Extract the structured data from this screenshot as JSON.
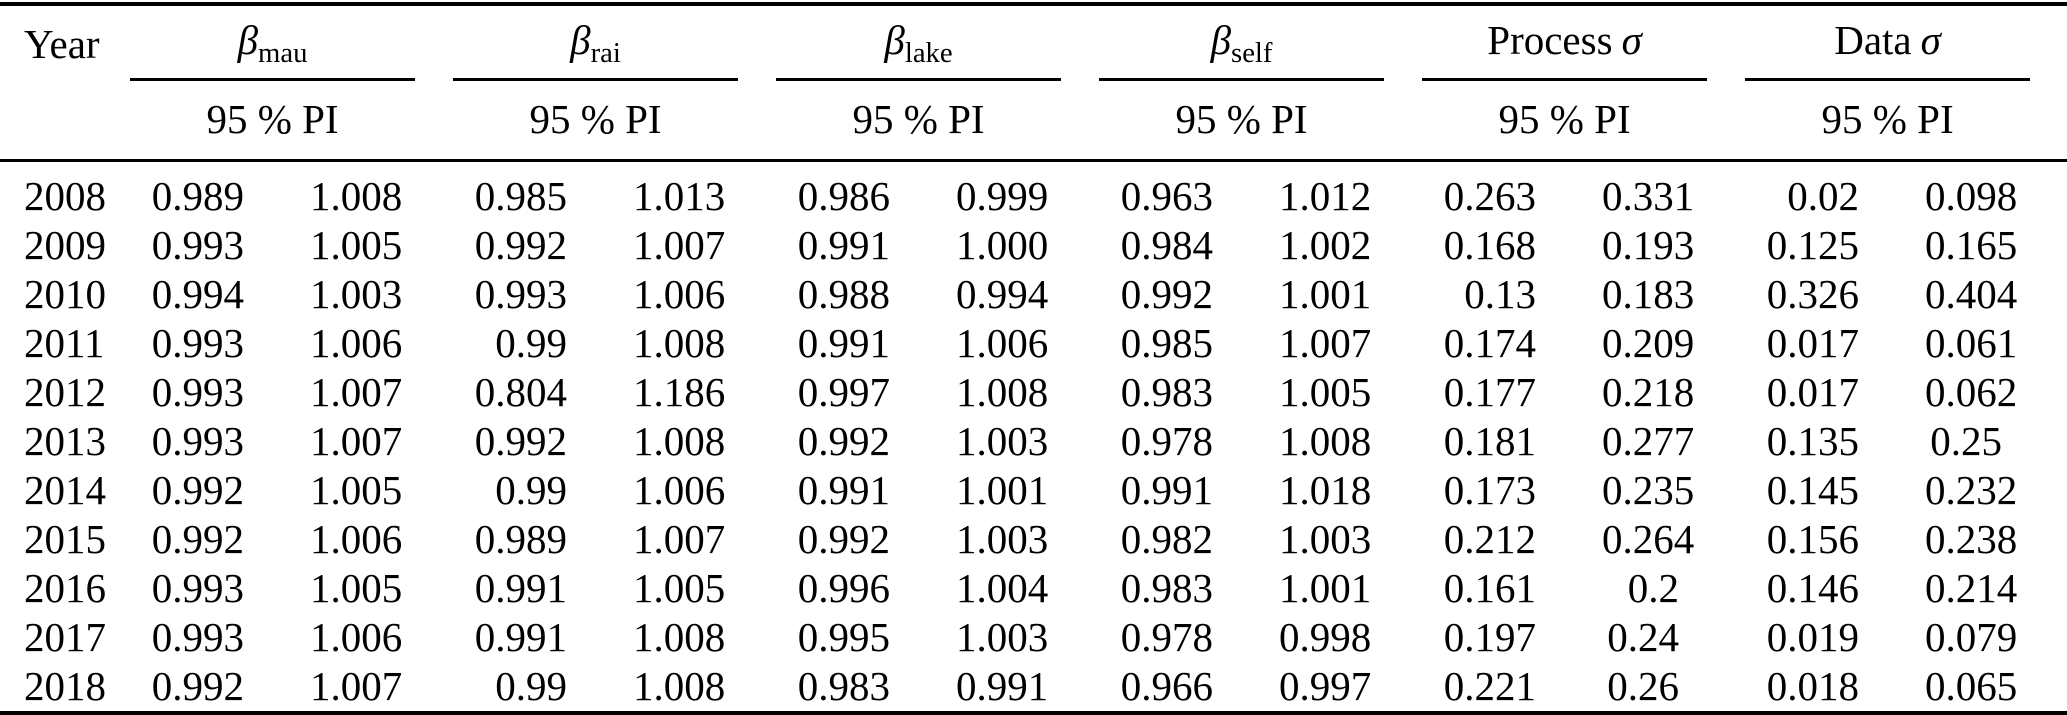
{
  "colors": {
    "background": "#ffffff",
    "text": "#000000",
    "rule": "#000000"
  },
  "header": {
    "year_label": "Year",
    "groups": [
      {
        "prefix": "",
        "symbol": "β",
        "subscript": "mau",
        "pi_label": "95 % PI"
      },
      {
        "prefix": "",
        "symbol": "β",
        "subscript": "rai",
        "pi_label": "95 % PI"
      },
      {
        "prefix": "",
        "symbol": "β",
        "subscript": "lake",
        "pi_label": "95 % PI"
      },
      {
        "prefix": "",
        "symbol": "β",
        "subscript": "self",
        "pi_label": "95 % PI"
      },
      {
        "prefix": "Process",
        "symbol": "σ",
        "subscript": "",
        "pi_label": "95 % PI"
      },
      {
        "prefix": "Data",
        "symbol": "σ",
        "subscript": "",
        "pi_label": "95 % PI"
      }
    ]
  },
  "rows": [
    {
      "year": "2008",
      "values": [
        "0.989",
        "1.008",
        "0.985",
        "1.013",
        "0.986",
        "0.999",
        "0.963",
        "1.012",
        "0.263",
        "0.331",
        "0.02",
        "0.098"
      ]
    },
    {
      "year": "2009",
      "values": [
        "0.993",
        "1.005",
        "0.992",
        "1.007",
        "0.991",
        "1.000",
        "0.984",
        "1.002",
        "0.168",
        "0.193",
        "0.125",
        "0.165"
      ]
    },
    {
      "year": "2010",
      "values": [
        "0.994",
        "1.003",
        "0.993",
        "1.006",
        "0.988",
        "0.994",
        "0.992",
        "1.001",
        "0.13",
        "0.183",
        "0.326",
        "0.404"
      ]
    },
    {
      "year": "2011",
      "values": [
        "0.993",
        "1.006",
        "0.99",
        "1.008",
        "0.991",
        "1.006",
        "0.985",
        "1.007",
        "0.174",
        "0.209",
        "0.017",
        "0.061"
      ]
    },
    {
      "year": "2012",
      "values": [
        "0.993",
        "1.007",
        "0.804",
        "1.186",
        "0.997",
        "1.008",
        "0.983",
        "1.005",
        "0.177",
        "0.218",
        "0.017",
        "0.062"
      ]
    },
    {
      "year": "2013",
      "values": [
        "0.993",
        "1.007",
        "0.992",
        "1.008",
        "0.992",
        "1.003",
        "0.978",
        "1.008",
        "0.181",
        "0.277",
        "0.135",
        "0.25"
      ]
    },
    {
      "year": "2014",
      "values": [
        "0.992",
        "1.005",
        "0.99",
        "1.006",
        "0.991",
        "1.001",
        "0.991",
        "1.018",
        "0.173",
        "0.235",
        "0.145",
        "0.232"
      ]
    },
    {
      "year": "2015",
      "values": [
        "0.992",
        "1.006",
        "0.989",
        "1.007",
        "0.992",
        "1.003",
        "0.982",
        "1.003",
        "0.212",
        "0.264",
        "0.156",
        "0.238"
      ]
    },
    {
      "year": "2016",
      "values": [
        "0.993",
        "1.005",
        "0.991",
        "1.005",
        "0.996",
        "1.004",
        "0.983",
        "1.001",
        "0.161",
        "0.2",
        "0.146",
        "0.214"
      ]
    },
    {
      "year": "2017",
      "values": [
        "0.993",
        "1.006",
        "0.991",
        "1.008",
        "0.995",
        "1.003",
        "0.978",
        "0.998",
        "0.197",
        "0.24",
        "0.019",
        "0.079"
      ]
    },
    {
      "year": "2018",
      "values": [
        "0.992",
        "1.007",
        "0.99",
        "1.008",
        "0.983",
        "0.991",
        "0.966",
        "0.997",
        "0.221",
        "0.26",
        "0.018",
        "0.065"
      ]
    }
  ]
}
